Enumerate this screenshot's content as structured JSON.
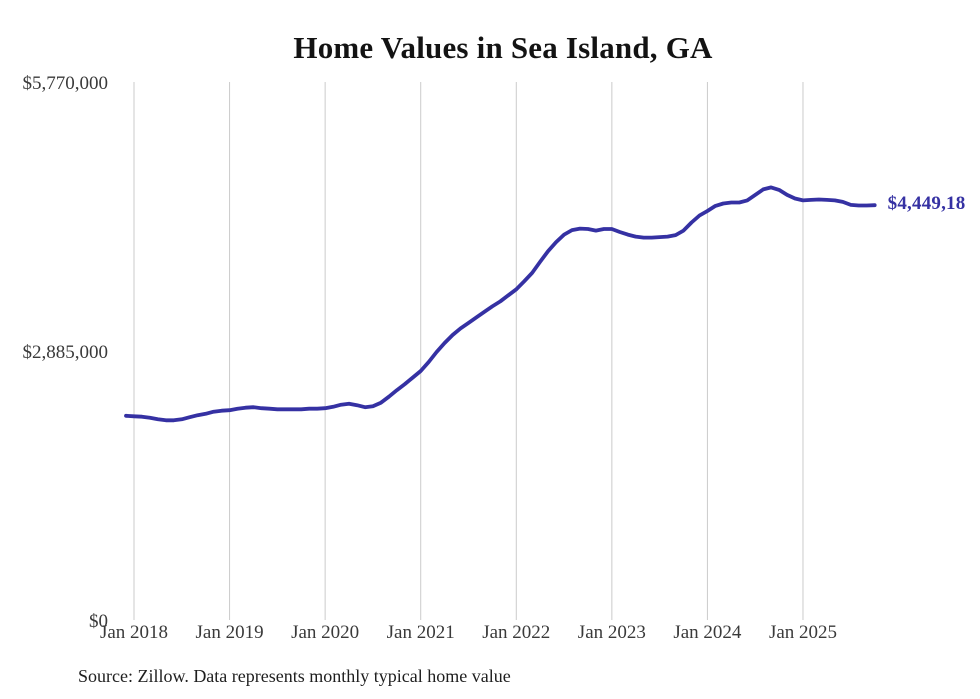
{
  "chart": {
    "title": "Home Values in Sea Island, GA",
    "end_label": "$4,449,18",
    "source": "Source: Zillow. Data represents monthly typical home value"
  },
  "colors": {
    "line": "#3531a3",
    "grid": "#cbcbcb",
    "axis_text": "#3a3a3a",
    "title_text": "#131313",
    "source_text": "#1e1e1e",
    "background": "#ffffff"
  },
  "chart_data": {
    "type": "line",
    "title": "Home Values in Sea Island, GA",
    "xlabel": "",
    "ylabel": "",
    "ylim": [
      0,
      5770000
    ],
    "grid": "vertical-only",
    "legend": "none",
    "y_ticks": [
      {
        "value": 5770000,
        "label": "$5,770,000"
      },
      {
        "value": 2885000,
        "label": "$2,885,000"
      },
      {
        "value": 0,
        "label": "$0"
      }
    ],
    "x_ticks": [
      {
        "year": 2018,
        "label": "Jan 2018"
      },
      {
        "year": 2019,
        "label": "Jan 2019"
      },
      {
        "year": 2020,
        "label": "Jan 2020"
      },
      {
        "year": 2021,
        "label": "Jan 2021"
      },
      {
        "year": 2022,
        "label": "Jan 2022"
      },
      {
        "year": 2023,
        "label": "Jan 2023"
      },
      {
        "year": 2024,
        "label": "Jan 2024"
      },
      {
        "year": 2025,
        "label": "Jan 2025"
      }
    ],
    "annotation": {
      "text": "$4,449,18",
      "position": "line-end"
    },
    "point_format": [
      "date(YYYY-MM)",
      "typical_home_value_usd(estimated)"
    ],
    "series": [
      {
        "name": "Monthly typical home value",
        "points": [
          [
            "2017-12",
            2190000
          ],
          [
            "2018-01",
            2185000
          ],
          [
            "2018-02",
            2180000
          ],
          [
            "2018-03",
            2169000
          ],
          [
            "2018-04",
            2153000
          ],
          [
            "2018-05",
            2142000
          ],
          [
            "2018-06",
            2142000
          ],
          [
            "2018-07",
            2153000
          ],
          [
            "2018-08",
            2175000
          ],
          [
            "2018-09",
            2196000
          ],
          [
            "2018-10",
            2212000
          ],
          [
            "2018-11",
            2234000
          ],
          [
            "2018-12",
            2245000
          ],
          [
            "2019-01",
            2250000
          ],
          [
            "2019-02",
            2266000
          ],
          [
            "2019-03",
            2277000
          ],
          [
            "2019-04",
            2282000
          ],
          [
            "2019-05",
            2271000
          ],
          [
            "2019-06",
            2266000
          ],
          [
            "2019-07",
            2260000
          ],
          [
            "2019-08",
            2260000
          ],
          [
            "2019-09",
            2260000
          ],
          [
            "2019-10",
            2260000
          ],
          [
            "2019-11",
            2266000
          ],
          [
            "2019-12",
            2266000
          ],
          [
            "2020-01",
            2271000
          ],
          [
            "2020-02",
            2287000
          ],
          [
            "2020-03",
            2309000
          ],
          [
            "2020-04",
            2320000
          ],
          [
            "2020-05",
            2304000
          ],
          [
            "2020-06",
            2282000
          ],
          [
            "2020-07",
            2293000
          ],
          [
            "2020-08",
            2331000
          ],
          [
            "2020-09",
            2395000
          ],
          [
            "2020-10",
            2465000
          ],
          [
            "2020-11",
            2530000
          ],
          [
            "2020-12",
            2600000
          ],
          [
            "2021-01",
            2670000
          ],
          [
            "2021-02",
            2767000
          ],
          [
            "2021-03",
            2874000
          ],
          [
            "2021-04",
            2971000
          ],
          [
            "2021-05",
            3057000
          ],
          [
            "2021-06",
            3127000
          ],
          [
            "2021-07",
            3186000
          ],
          [
            "2021-08",
            3246000
          ],
          [
            "2021-09",
            3305000
          ],
          [
            "2021-10",
            3364000
          ],
          [
            "2021-11",
            3418000
          ],
          [
            "2021-12",
            3482000
          ],
          [
            "2022-01",
            3547000
          ],
          [
            "2022-02",
            3633000
          ],
          [
            "2022-03",
            3724000
          ],
          [
            "2022-04",
            3843000
          ],
          [
            "2022-05",
            3956000
          ],
          [
            "2022-06",
            4053000
          ],
          [
            "2022-07",
            4133000
          ],
          [
            "2022-08",
            4182000
          ],
          [
            "2022-09",
            4198000
          ],
          [
            "2022-10",
            4193000
          ],
          [
            "2022-11",
            4176000
          ],
          [
            "2022-12",
            4193000
          ],
          [
            "2023-01",
            4193000
          ],
          [
            "2023-02",
            4161000
          ],
          [
            "2023-03",
            4133000
          ],
          [
            "2023-04",
            4112000
          ],
          [
            "2023-05",
            4101000
          ],
          [
            "2023-06",
            4101000
          ],
          [
            "2023-07",
            4107000
          ],
          [
            "2023-08",
            4112000
          ],
          [
            "2023-09",
            4128000
          ],
          [
            "2023-10",
            4176000
          ],
          [
            "2023-11",
            4263000
          ],
          [
            "2023-12",
            4338000
          ],
          [
            "2024-01",
            4387000
          ],
          [
            "2024-02",
            4441000
          ],
          [
            "2024-03",
            4467000
          ],
          [
            "2024-04",
            4478000
          ],
          [
            "2024-05",
            4478000
          ],
          [
            "2024-06",
            4500000
          ],
          [
            "2024-07",
            4559000
          ],
          [
            "2024-08",
            4618000
          ],
          [
            "2024-09",
            4640000
          ],
          [
            "2024-10",
            4613000
          ],
          [
            "2024-11",
            4559000
          ],
          [
            "2024-12",
            4521000
          ],
          [
            "2025-01",
            4500000
          ],
          [
            "2025-02",
            4505000
          ],
          [
            "2025-03",
            4510000
          ],
          [
            "2025-04",
            4505000
          ],
          [
            "2025-05",
            4500000
          ],
          [
            "2025-06",
            4484000
          ],
          [
            "2025-07",
            4452000
          ],
          [
            "2025-08",
            4446000
          ],
          [
            "2025-09",
            4446000
          ],
          [
            "2025-10",
            4449000
          ]
        ]
      }
    ]
  }
}
